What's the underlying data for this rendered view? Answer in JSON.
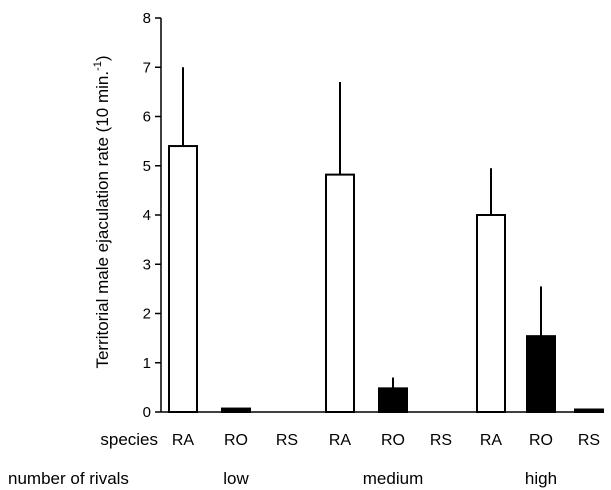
{
  "chart_data": {
    "type": "bar",
    "ylabel_main": "Territorial male ejaculation rate (10 min.",
    "ylabel_sup": "-1",
    "ylabel_close": ")",
    "ylim": [
      0,
      8
    ],
    "yticks": [
      "0",
      "1",
      "2",
      "3",
      "4",
      "5",
      "6",
      "7",
      "8"
    ],
    "grid": false,
    "row_labels": {
      "species": "species",
      "rivals": "number of rivals"
    },
    "groups": [
      {
        "label": "low",
        "bars": [
          {
            "species": "RA",
            "value": 5.4,
            "error": 1.6,
            "color": "#ffffff"
          },
          {
            "species": "RO",
            "value": 0.07,
            "error": 0,
            "color": "#000000"
          },
          {
            "species": "RS",
            "value": 0,
            "error": 0,
            "color": "#000000"
          }
        ]
      },
      {
        "label": "medium",
        "bars": [
          {
            "species": "RA",
            "value": 4.82,
            "error": 1.88,
            "color": "#ffffff"
          },
          {
            "species": "RO",
            "value": 0.48,
            "error": 0.22,
            "color": "#000000"
          },
          {
            "species": "RS",
            "value": 0,
            "error": 0,
            "color": "#000000"
          }
        ]
      },
      {
        "label": "high",
        "bars": [
          {
            "species": "RA",
            "value": 4.0,
            "error": 0.95,
            "color": "#ffffff"
          },
          {
            "species": "RO",
            "value": 1.54,
            "error": 1.01,
            "color": "#000000"
          },
          {
            "species": "RS",
            "value": 0.03,
            "error": 0,
            "color": "#000000"
          }
        ]
      }
    ]
  }
}
